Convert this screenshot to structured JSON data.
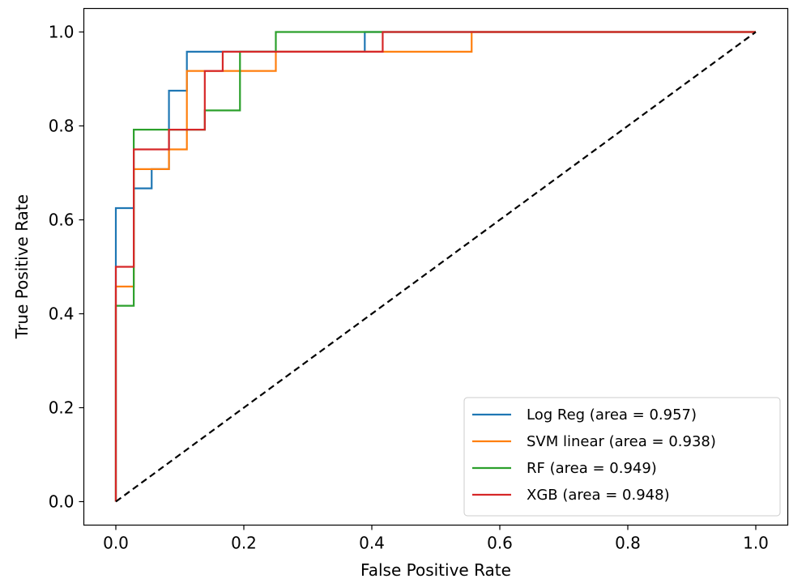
{
  "chart_data": {
    "type": "line",
    "title": "",
    "xlabel": "False Positive Rate",
    "ylabel": "True Positive Rate",
    "xlim": [
      -0.05,
      1.05
    ],
    "ylim": [
      -0.05,
      1.05
    ],
    "xticks": [
      0.0,
      0.2,
      0.4,
      0.6,
      0.8,
      1.0
    ],
    "yticks": [
      0.0,
      0.2,
      0.4,
      0.6,
      0.8,
      1.0
    ],
    "xtick_labels": [
      "0.0",
      "0.2",
      "0.4",
      "0.6",
      "0.8",
      "1.0"
    ],
    "ytick_labels": [
      "0.0",
      "0.2",
      "0.4",
      "0.6",
      "0.8",
      "1.0"
    ],
    "grid": false,
    "legend_position": "lower-right",
    "series": [
      {
        "name": "Log Reg (area = 0.957)",
        "color": "#1f77b4",
        "x": [
          0.0,
          0.0,
          0.028,
          0.028,
          0.056,
          0.056,
          0.083,
          0.083,
          0.111,
          0.111,
          0.389,
          0.389,
          1.0
        ],
        "y": [
          0.0,
          0.625,
          0.625,
          0.667,
          0.667,
          0.708,
          0.708,
          0.875,
          0.875,
          0.958,
          0.958,
          1.0,
          1.0
        ]
      },
      {
        "name": "SVM linear (area = 0.938)",
        "color": "#ff7f0e",
        "x": [
          0.0,
          0.0,
          0.028,
          0.028,
          0.083,
          0.083,
          0.111,
          0.111,
          0.25,
          0.25,
          0.556,
          0.556,
          1.0
        ],
        "y": [
          0.0,
          0.458,
          0.458,
          0.708,
          0.708,
          0.75,
          0.75,
          0.917,
          0.917,
          0.958,
          0.958,
          1.0,
          1.0
        ]
      },
      {
        "name": "RF (area = 0.949)",
        "color": "#2ca02c",
        "x": [
          0.0,
          0.0,
          0.028,
          0.028,
          0.139,
          0.139,
          0.194,
          0.194,
          0.25,
          0.25,
          1.0
        ],
        "y": [
          0.0,
          0.417,
          0.417,
          0.792,
          0.792,
          0.833,
          0.833,
          0.958,
          0.958,
          1.0,
          1.0
        ]
      },
      {
        "name": "XGB (area = 0.948)",
        "color": "#d62728",
        "x": [
          0.0,
          0.0,
          0.028,
          0.028,
          0.083,
          0.083,
          0.139,
          0.139,
          0.167,
          0.167,
          0.417,
          0.417,
          1.0
        ],
        "y": [
          0.0,
          0.5,
          0.5,
          0.75,
          0.75,
          0.792,
          0.792,
          0.917,
          0.917,
          0.958,
          0.958,
          1.0,
          1.0
        ]
      }
    ],
    "reference_line": {
      "x": [
        0.0,
        1.0
      ],
      "y": [
        0.0,
        1.0
      ],
      "color": "#000000",
      "style": "dashed"
    }
  }
}
